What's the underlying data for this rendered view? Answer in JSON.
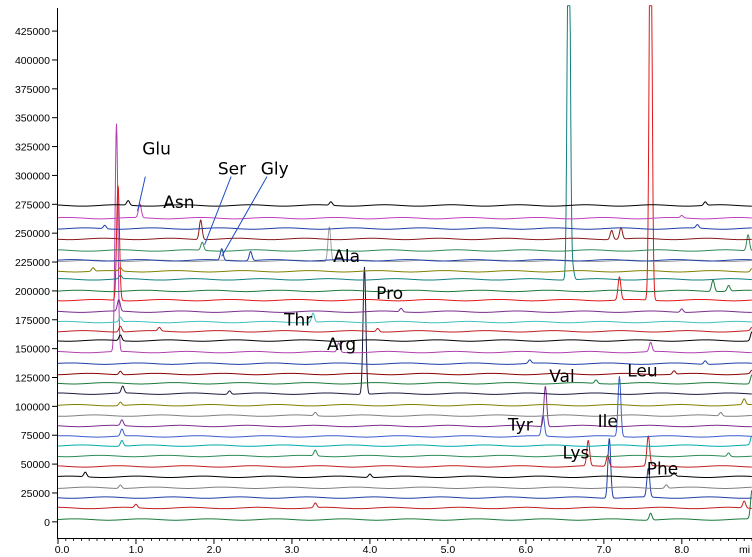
{
  "chart_data": {
    "type": "line",
    "title": "",
    "xlabel": "",
    "ylabel": "",
    "x_unit_label": "mi",
    "xlim": [
      0.0,
      8.9
    ],
    "ylim": [
      -14000,
      445000
    ],
    "grid": false,
    "legend": "none",
    "y_ticks": [
      {
        "value": 0,
        "label": "0"
      },
      {
        "value": 25000,
        "label": "25000"
      },
      {
        "value": 50000,
        "label": "50000"
      },
      {
        "value": 75000,
        "label": "75000"
      },
      {
        "value": 100000,
        "label": "100000"
      },
      {
        "value": 125000,
        "label": "125000"
      },
      {
        "value": 150000,
        "label": "150000"
      },
      {
        "value": 175000,
        "label": "175000"
      },
      {
        "value": 200000,
        "label": "200000"
      },
      {
        "value": 225000,
        "label": "225000"
      },
      {
        "value": 250000,
        "label": "250000"
      },
      {
        "value": 275000,
        "label": "275000"
      },
      {
        "value": 300000,
        "label": "300000"
      },
      {
        "value": 325000,
        "label": "325000"
      },
      {
        "value": 350000,
        "label": "350000"
      },
      {
        "value": 375000,
        "label": "375000"
      },
      {
        "value": 400000,
        "label": "400000"
      },
      {
        "value": 425000,
        "label": "425000"
      }
    ],
    "x_ticks": [
      {
        "value": 0,
        "label": "0.0"
      },
      {
        "value": 1,
        "label": "1.0"
      },
      {
        "value": 2,
        "label": "2.0"
      },
      {
        "value": 3,
        "label": "3.0"
      },
      {
        "value": 4,
        "label": "4.0"
      },
      {
        "value": 5,
        "label": "5.0"
      },
      {
        "value": 6,
        "label": "6.0"
      },
      {
        "value": 7,
        "label": "7.0"
      },
      {
        "value": 8,
        "label": "8.0"
      }
    ],
    "series": [
      {
        "color": "#1a7a3a",
        "baseline": 2000,
        "peaks": [
          [
            7.6,
            6000
          ],
          [
            8.9,
            25000
          ]
        ]
      },
      {
        "color": "#c02020",
        "baseline": 12000,
        "peaks": [
          [
            1.0,
            3000
          ],
          [
            3.3,
            4000
          ],
          [
            8.8,
            6000
          ]
        ]
      },
      {
        "color": "#1e3fa6",
        "baseline": 21000,
        "peaks": [
          [
            7.07,
            52000
          ],
          [
            7.57,
            25000
          ]
        ]
      },
      {
        "color": "#808080",
        "baseline": 29500,
        "peaks": [
          [
            0.8,
            3000
          ],
          [
            7.8,
            3000
          ]
        ]
      },
      {
        "color": "#000000",
        "baseline": 39000,
        "peaks": [
          [
            0.35,
            4000
          ],
          [
            4.0,
            3000
          ],
          [
            7.9,
            3000
          ]
        ]
      },
      {
        "color": "#c02020",
        "baseline": 48000,
        "peaks": [
          [
            6.8,
            22000
          ],
          [
            7.05,
            10000
          ],
          [
            7.57,
            26000
          ]
        ]
      },
      {
        "color": "#2e8b57",
        "baseline": 57000,
        "peaks": [
          [
            3.3,
            5000
          ],
          [
            8.6,
            3000
          ]
        ]
      },
      {
        "color": "#00aaaa",
        "baseline": 66000,
        "peaks": [
          [
            0.82,
            5000
          ],
          [
            8.9,
            8000
          ]
        ]
      },
      {
        "color": "#3a5fcd",
        "baseline": 74000,
        "peaks": [
          [
            0.82,
            6000
          ],
          [
            6.22,
            18000
          ],
          [
            7.2,
            52000
          ]
        ]
      },
      {
        "color": "#7b2d8e",
        "baseline": 83000,
        "peaks": [
          [
            0.82,
            5000
          ],
          [
            6.25,
            35000
          ]
        ]
      },
      {
        "color": "#808080",
        "baseline": 92000,
        "peaks": [
          [
            3.3,
            3000
          ],
          [
            8.5,
            3000
          ]
        ]
      },
      {
        "color": "#808000",
        "baseline": 101000,
        "peaks": [
          [
            0.8,
            3000
          ],
          [
            8.8,
            5000
          ]
        ]
      },
      {
        "color": "#1a1a40",
        "baseline": 111000,
        "peaks": [
          [
            0.83,
            6000
          ],
          [
            2.2,
            3000
          ],
          [
            3.93,
            110000
          ]
        ]
      },
      {
        "color": "#1a7a3a",
        "baseline": 120000,
        "peaks": [
          [
            6.9,
            3000
          ],
          [
            8.9,
            8000
          ]
        ]
      },
      {
        "color": "#8b0000",
        "baseline": 128000,
        "peaks": [
          [
            0.8,
            3000
          ],
          [
            7.9,
            3000
          ],
          [
            8.9,
            3000
          ]
        ]
      },
      {
        "color": "#1e3fa6",
        "baseline": 137000,
        "peaks": [
          [
            6.05,
            3000
          ],
          [
            8.3,
            3000
          ]
        ]
      },
      {
        "color": "#b040b0",
        "baseline": 147000,
        "peaks": [
          [
            0.75,
            197000
          ],
          [
            3.6,
            8000
          ],
          [
            7.6,
            8000
          ]
        ]
      },
      {
        "color": "#000000",
        "baseline": 157000,
        "peaks": [
          [
            0.8,
            5000
          ],
          [
            8.9,
            8000
          ]
        ]
      },
      {
        "color": "#c02020",
        "baseline": 165000,
        "peaks": [
          [
            0.8,
            5000
          ],
          [
            1.3,
            3000
          ],
          [
            4.1,
            3000
          ],
          [
            8.9,
            3000
          ]
        ]
      },
      {
        "color": "#40c0c0",
        "baseline": 173000,
        "peaks": [
          [
            0.8,
            4000
          ],
          [
            3.27,
            8000
          ]
        ]
      },
      {
        "color": "#7b2d8e",
        "baseline": 182000,
        "peaks": [
          [
            0.78,
            10000
          ],
          [
            4.4,
            3000
          ],
          [
            8.0,
            3000
          ]
        ]
      },
      {
        "color": "#e01818",
        "baseline": 192000,
        "peaks": [
          [
            0.77,
            100000
          ],
          [
            7.2,
            20000
          ],
          [
            7.6,
            380000
          ]
        ]
      },
      {
        "color": "#1a7a3a",
        "baseline": 200000,
        "peaks": [
          [
            8.4,
            10000
          ],
          [
            8.6,
            5000
          ]
        ]
      },
      {
        "color": "#108080",
        "baseline": 210000,
        "peaks": [
          [
            0.8,
            3000
          ],
          [
            6.55,
            390000
          ],
          [
            6.6,
            10000
          ]
        ]
      },
      {
        "color": "#808000",
        "baseline": 217000,
        "peaks": [
          [
            0.45,
            3000
          ],
          [
            0.8,
            3000
          ],
          [
            8.9,
            3000
          ]
        ]
      },
      {
        "color": "#a0a0a0",
        "baseline": 226000,
        "peaks": [
          [
            3.48,
            30000
          ]
        ]
      },
      {
        "color": "#1e3fa6",
        "baseline": 226500,
        "peaks": [
          [
            2.1,
            10000
          ],
          [
            2.47,
            8000
          ]
        ]
      },
      {
        "color": "#2e8b57",
        "baseline": 235000,
        "peaks": [
          [
            1.85,
            7000
          ],
          [
            8.85,
            14000
          ]
        ]
      },
      {
        "color": "#8b1a1a",
        "baseline": 245000,
        "peaks": [
          [
            1.83,
            17000
          ],
          [
            7.1,
            8000
          ],
          [
            7.22,
            10000
          ]
        ]
      },
      {
        "color": "#1e3fa6",
        "baseline": 254000,
        "peaks": [
          [
            0.6,
            3000
          ],
          [
            8.2,
            3000
          ]
        ]
      },
      {
        "color": "#c040c0",
        "baseline": 263000,
        "peaks": [
          [
            1.05,
            12000
          ],
          [
            8.0,
            2000
          ]
        ]
      },
      {
        "color": "#000000",
        "baseline": 274000,
        "peaks": [
          [
            0.9,
            4000
          ],
          [
            3.5,
            3000
          ],
          [
            8.3,
            3000
          ]
        ]
      }
    ],
    "peak_labels": [
      {
        "text": "Glu",
        "x": 1.08,
        "y": 318000
      },
      {
        "text": "Asn",
        "x": 1.35,
        "y": 272000
      },
      {
        "text": "Ser",
        "x": 2.05,
        "y": 301000
      },
      {
        "text": "Gly",
        "x": 2.6,
        "y": 301000
      },
      {
        "text": "Ala",
        "x": 3.53,
        "y": 225000
      },
      {
        "text": "Pro",
        "x": 4.08,
        "y": 193000
      },
      {
        "text": "Thr",
        "x": 2.9,
        "y": 170000
      },
      {
        "text": "Arg",
        "x": 3.45,
        "y": 149000
      },
      {
        "text": "Val",
        "x": 6.3,
        "y": 121000
      },
      {
        "text": "Leu",
        "x": 7.3,
        "y": 126000
      },
      {
        "text": "Tyr",
        "x": 5.77,
        "y": 79000
      },
      {
        "text": "Ile",
        "x": 6.92,
        "y": 82000
      },
      {
        "text": "Lys",
        "x": 6.47,
        "y": 55000
      },
      {
        "text": "Phe",
        "x": 7.55,
        "y": 41000
      }
    ],
    "leader_lines": [
      {
        "x1": 1.12,
        "y1": 299000,
        "x2": 1.02,
        "y2": 269000
      },
      {
        "x1": 2.22,
        "y1": 299000,
        "x2": 1.88,
        "y2": 240000
      },
      {
        "x1": 2.68,
        "y1": 299000,
        "x2": 2.1,
        "y2": 230000
      }
    ]
  }
}
